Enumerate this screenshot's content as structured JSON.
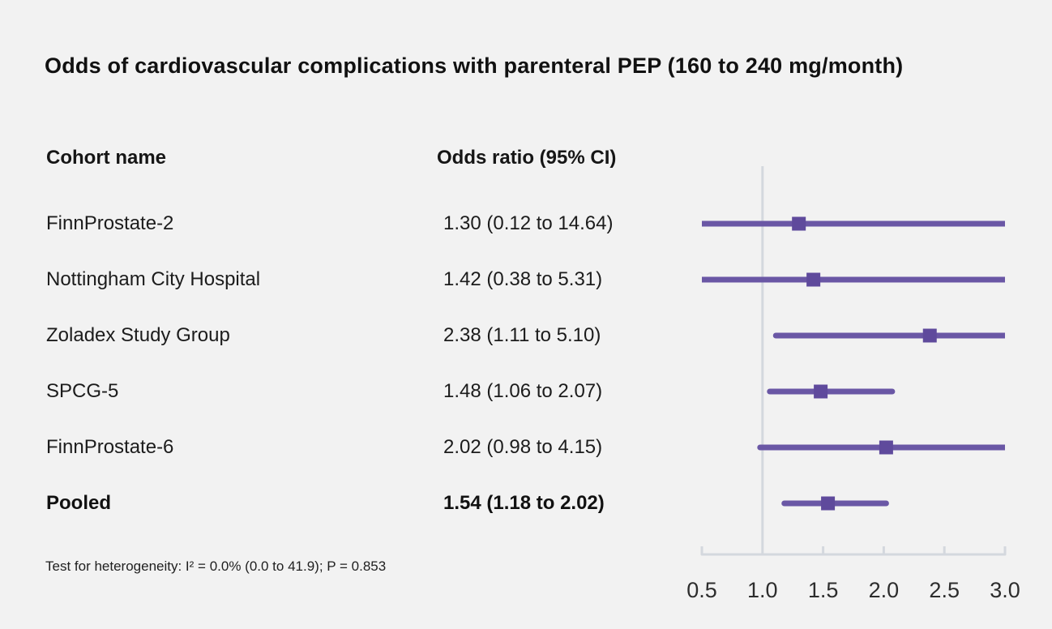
{
  "title": "Odds of cardiovascular complications with parenteral PEP (160 to 240 mg/month)",
  "table": {
    "col1_header": "Cohort name",
    "col2_header": "Odds ratio (95% CI)"
  },
  "footnote": "Test for heterogeneity: I² = 0.0% (0.0 to 41.9); P = 0.853",
  "chart_data": {
    "type": "forest",
    "title": "Odds of cardiovascular complications with parenteral PEP (160 to 240 mg/month)",
    "rows": [
      {
        "name": "FinnProstate-2",
        "estimate_label": "1.30 (0.12 to 14.64)",
        "or": 1.3,
        "ci_low": 0.12,
        "ci_high": 14.64,
        "bold": false
      },
      {
        "name": "Nottingham City Hospital",
        "estimate_label": "1.42 (0.38 to 5.31)",
        "or": 1.42,
        "ci_low": 0.38,
        "ci_high": 5.31,
        "bold": false
      },
      {
        "name": "Zoladex Study Group",
        "estimate_label": "2.38 (1.11 to 5.10)",
        "or": 2.38,
        "ci_low": 1.11,
        "ci_high": 5.1,
        "bold": false
      },
      {
        "name": "SPCG-5",
        "estimate_label": "1.48 (1.06 to 2.07)",
        "or": 1.48,
        "ci_low": 1.06,
        "ci_high": 2.07,
        "bold": false
      },
      {
        "name": "FinnProstate-6",
        "estimate_label": "2.02 (0.98 to 4.15)",
        "or": 2.02,
        "ci_low": 0.98,
        "ci_high": 4.15,
        "bold": false
      },
      {
        "name": "Pooled",
        "estimate_label": "1.54 (1.18 to 2.02)",
        "or": 1.54,
        "ci_low": 1.18,
        "ci_high": 2.02,
        "bold": true
      }
    ],
    "axis": {
      "min": 0.5,
      "max": 3.0,
      "ticks": [
        0.5,
        1.0,
        1.5,
        2.0,
        2.5,
        3.0
      ],
      "tick_labels": [
        "0.5",
        "1.0",
        "1.5",
        "2.0",
        "2.5",
        "3.0"
      ],
      "reference_line": 1.0,
      "scale": "linear"
    },
    "legend": "none",
    "colors": {
      "ci_line": "#6a57a5",
      "marker": "#5f4a9c",
      "axis": "#d4d8de",
      "reference_line": "#d4d8de",
      "tick_label": "#2d2d2d",
      "background": "#f2f2f2"
    }
  }
}
